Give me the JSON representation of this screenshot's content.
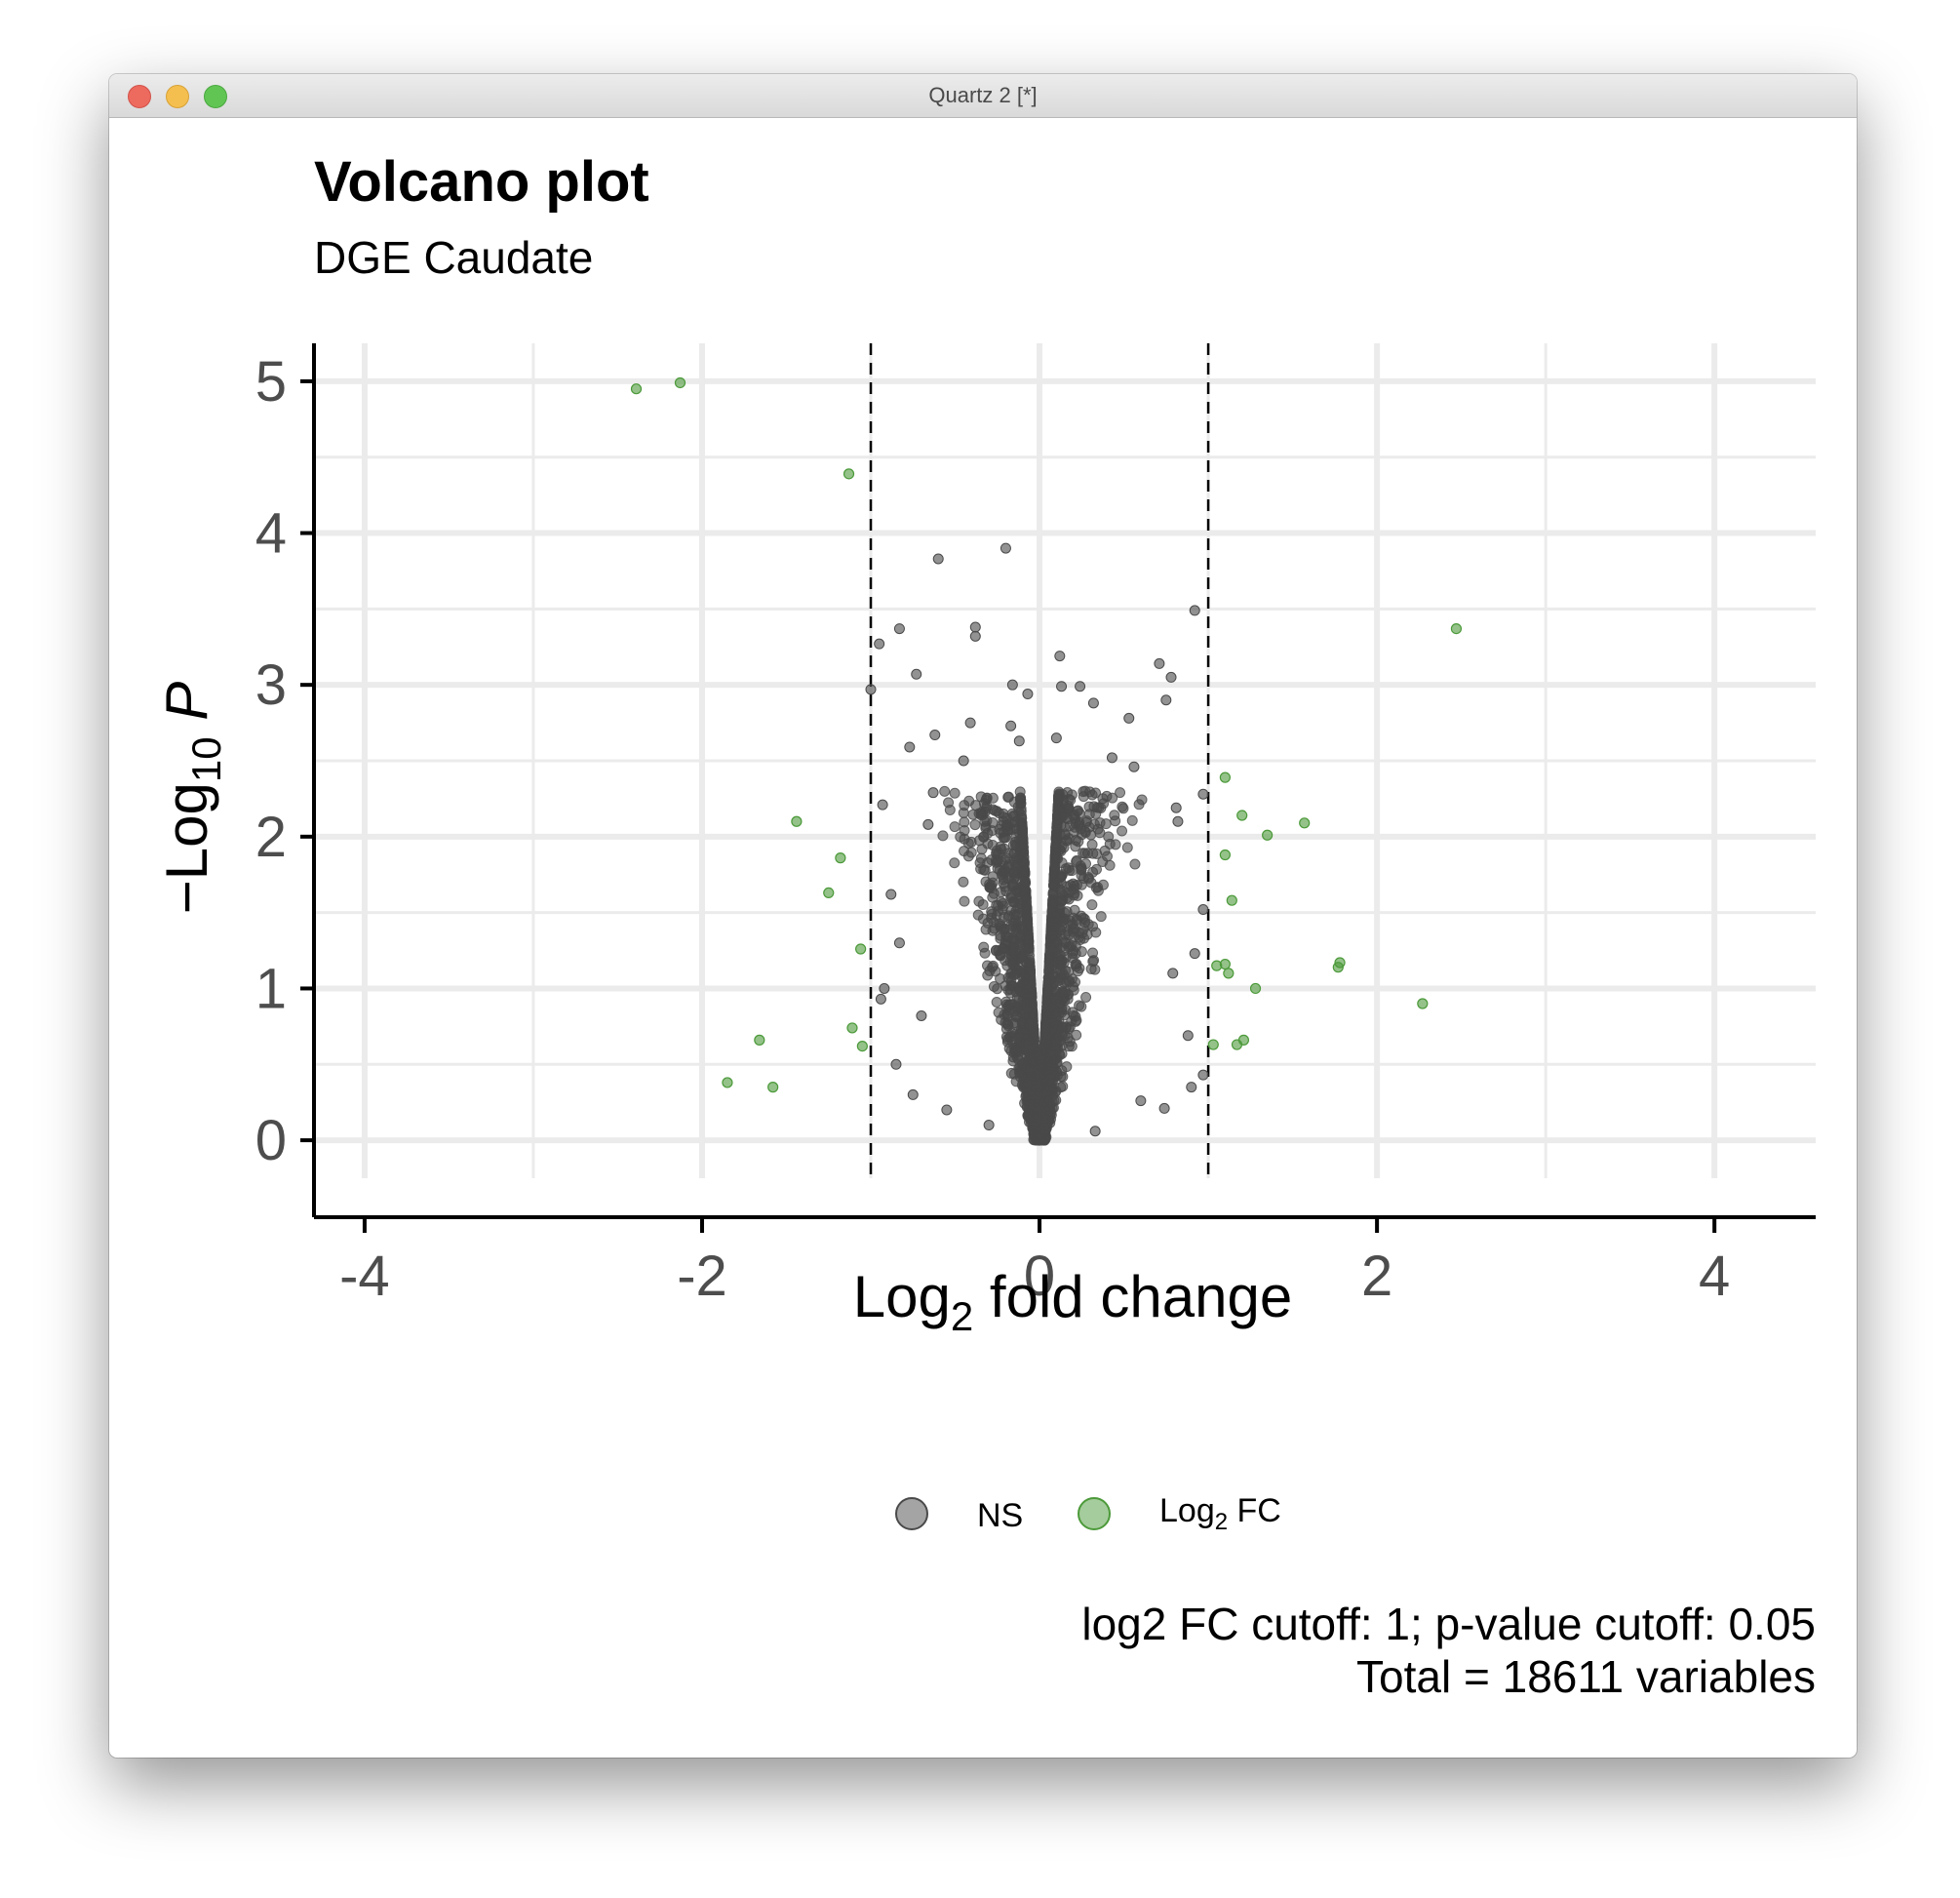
{
  "window": {
    "title": "Quartz 2 [*]",
    "buttons": {
      "close": "close",
      "minimize": "minimize",
      "zoom": "zoom"
    }
  },
  "colors": {
    "ns": "#4a4a4a",
    "fc": "#4c9a3a",
    "grid": "#ebebeb",
    "axis": "#000000",
    "cutoff_line": "#000000"
  },
  "chart_data": {
    "type": "scatter",
    "title": "Volcano plot",
    "subtitle": "DGE Caudate",
    "xlabel": {
      "prefix": "Log",
      "sub": "2",
      "suffix": " fold change"
    },
    "ylabel": {
      "prefix": "−Log",
      "sub": "10",
      "suffix": " P"
    },
    "xlim": [
      -4.3,
      4.6
    ],
    "ylim": [
      -0.25,
      5.25
    ],
    "xticks": [
      -4,
      -2,
      0,
      2,
      4
    ],
    "xtick_labels": [
      "-4",
      "-2",
      "0",
      "2",
      "4"
    ],
    "yticks": [
      0,
      1,
      2,
      3,
      4,
      5
    ],
    "ytick_labels": [
      "0",
      "1",
      "2",
      "3",
      "4",
      "5"
    ],
    "grid": true,
    "cutoffs": {
      "log2fc": [
        -1,
        1
      ]
    },
    "legend": {
      "position": "bottom",
      "entries": [
        {
          "label": "NS"
        },
        {
          "label_prefix": "Log",
          "label_sub": "2",
          "label_suffix": " FC"
        }
      ]
    },
    "caption": [
      "log2 FC cutoff: 1; p-value cutoff: 0.05",
      "Total = 18611 variables"
    ],
    "series": [
      {
        "name": "NS",
        "color": "#4a4a4a",
        "points": [
          [
            -0.6,
            3.83
          ],
          [
            -0.2,
            3.9
          ],
          [
            0.92,
            3.49
          ],
          [
            -0.83,
            3.37
          ],
          [
            -0.38,
            3.38
          ],
          [
            -0.95,
            3.27
          ],
          [
            -0.38,
            3.32
          ],
          [
            0.12,
            3.19
          ],
          [
            -0.73,
            3.07
          ],
          [
            0.71,
            3.14
          ],
          [
            -1.0,
            2.97
          ],
          [
            -0.16,
            3.0
          ],
          [
            0.78,
            3.05
          ],
          [
            -0.07,
            2.94
          ],
          [
            0.13,
            2.99
          ],
          [
            0.24,
            2.99
          ],
          [
            0.75,
            2.9
          ],
          [
            -0.41,
            2.75
          ],
          [
            0.53,
            2.78
          ],
          [
            -0.17,
            2.73
          ],
          [
            -0.62,
            2.67
          ],
          [
            -0.77,
            2.59
          ],
          [
            0.32,
            2.88
          ],
          [
            0.1,
            2.65
          ],
          [
            -0.12,
            2.63
          ],
          [
            0.56,
            2.46
          ],
          [
            0.43,
            2.52
          ],
          [
            -0.45,
            2.5
          ],
          [
            -0.93,
            2.21
          ],
          [
            0.97,
            2.28
          ],
          [
            -0.63,
            2.29
          ],
          [
            0.81,
            2.19
          ],
          [
            0.82,
            2.1
          ],
          [
            -0.66,
            2.08
          ],
          [
            -0.88,
            1.62
          ],
          [
            0.97,
            1.52
          ],
          [
            -0.83,
            1.3
          ],
          [
            0.92,
            1.23
          ],
          [
            -0.92,
            1.0
          ],
          [
            0.97,
            0.43
          ],
          [
            -0.85,
            0.5
          ],
          [
            0.88,
            0.69
          ],
          [
            -0.75,
            0.3
          ],
          [
            0.74,
            0.21
          ],
          [
            -0.7,
            0.82
          ],
          [
            0.79,
            1.1
          ],
          [
            -0.94,
            0.93
          ],
          [
            0.9,
            0.35
          ],
          [
            -0.55,
            0.2
          ],
          [
            0.6,
            0.26
          ],
          [
            -0.3,
            0.1
          ],
          [
            0.33,
            0.06
          ]
        ],
        "cloud": {
          "count": 2400,
          "x_center": 0.0,
          "x_spread_max": 0.9,
          "y_max": 2.3,
          "note": "density cluster"
        }
      },
      {
        "name": "Log2 FC",
        "color": "#4c9a3a",
        "points": [
          [
            -2.39,
            4.95
          ],
          [
            -2.13,
            4.99
          ],
          [
            -1.13,
            4.39
          ],
          [
            2.47,
            3.37
          ],
          [
            -1.44,
            2.1
          ],
          [
            -1.18,
            1.86
          ],
          [
            -1.25,
            1.63
          ],
          [
            -1.06,
            1.26
          ],
          [
            -1.66,
            0.66
          ],
          [
            -1.85,
            0.38
          ],
          [
            -1.58,
            0.35
          ],
          [
            -1.11,
            0.74
          ],
          [
            -1.05,
            0.62
          ],
          [
            1.1,
            2.39
          ],
          [
            1.2,
            2.14
          ],
          [
            1.35,
            2.01
          ],
          [
            1.57,
            2.09
          ],
          [
            1.1,
            1.88
          ],
          [
            1.14,
            1.58
          ],
          [
            1.1,
            1.16
          ],
          [
            1.12,
            1.1
          ],
          [
            1.05,
            1.15
          ],
          [
            1.28,
            1.0
          ],
          [
            1.77,
            1.14
          ],
          [
            1.78,
            1.17
          ],
          [
            2.27,
            0.9
          ],
          [
            1.03,
            0.63
          ],
          [
            1.17,
            0.63
          ],
          [
            1.21,
            0.66
          ]
        ]
      }
    ]
  }
}
